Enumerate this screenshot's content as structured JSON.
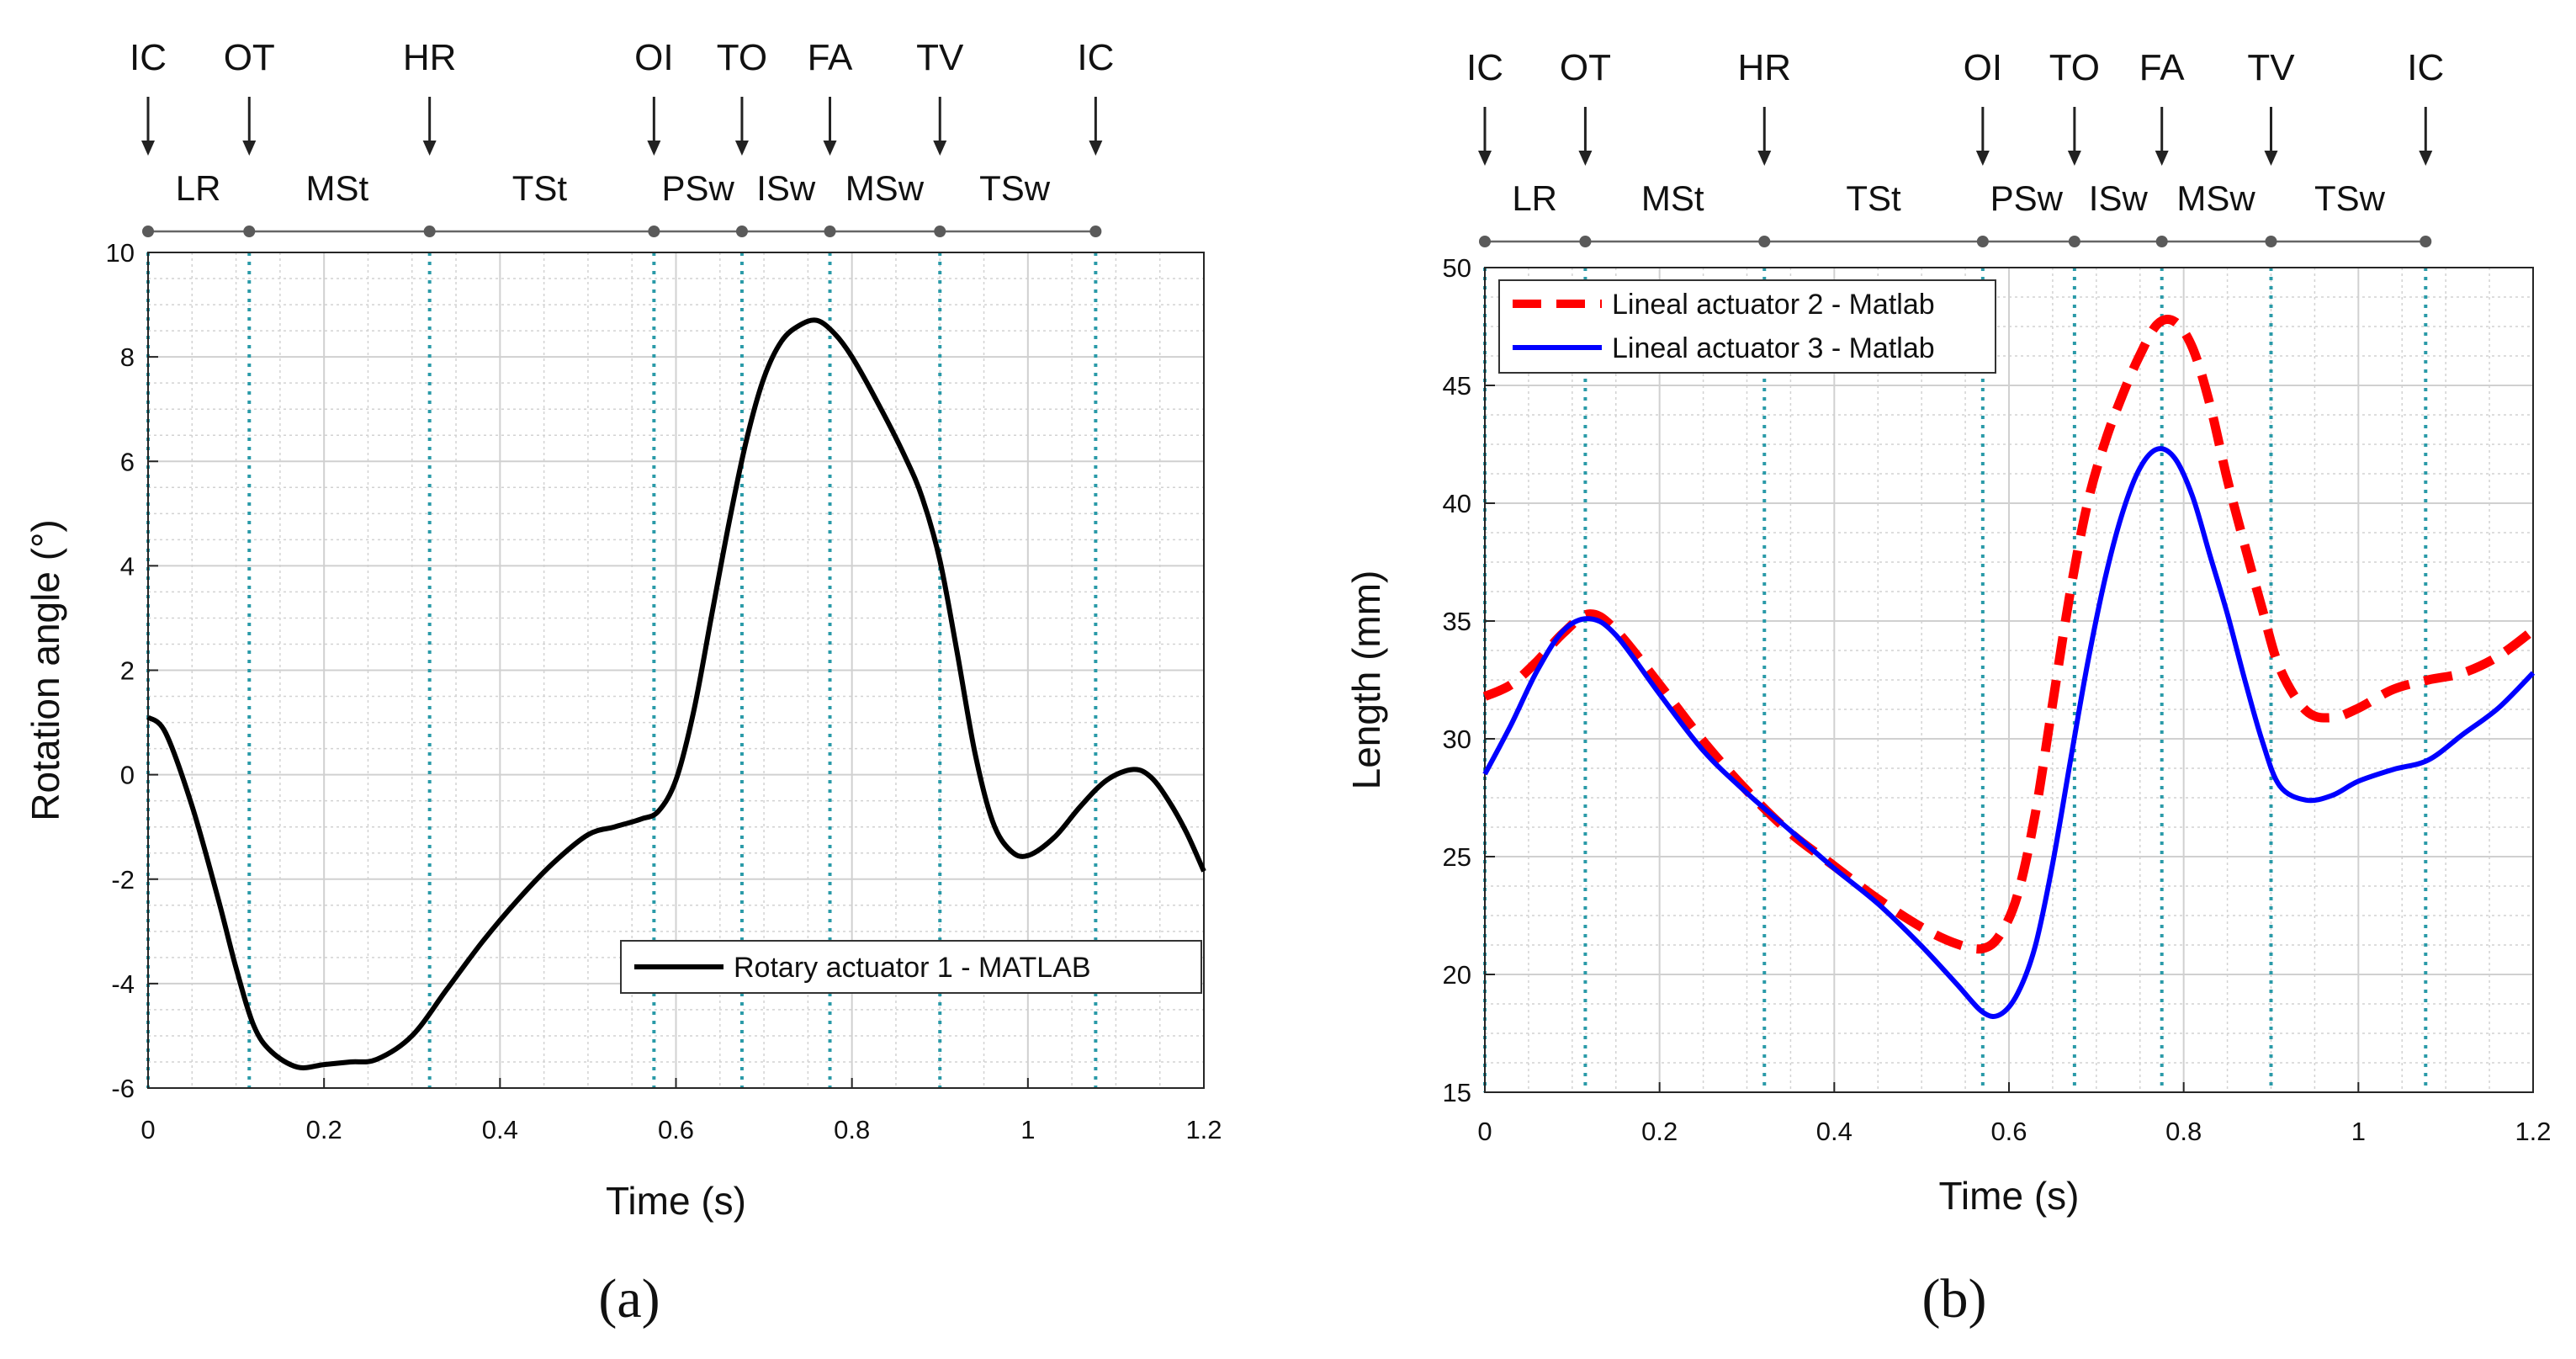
{
  "chart_data": [
    {
      "type": "line",
      "caption": "(a)",
      "xlabel": "Time (s)",
      "ylabel": "Rotation angle (°)",
      "xlim": [
        0,
        1.2
      ],
      "ylim": [
        -6,
        10
      ],
      "xticks": [
        0,
        0.2,
        0.4,
        0.6,
        0.8,
        1,
        1.2
      ],
      "xtick_labels": [
        "0",
        "0.2",
        "0.4",
        "0.6",
        "0.8",
        "1",
        "1.2"
      ],
      "yticks": [
        -6,
        -4,
        -2,
        0,
        2,
        4,
        6,
        8,
        10
      ],
      "ytick_labels": [
        "-6",
        "-4",
        "-2",
        "0",
        "2",
        "4",
        "6",
        "8",
        "10"
      ],
      "grid": true,
      "legend_position": "bottom-right",
      "events": [
        {
          "label": "IC",
          "t": 0
        },
        {
          "label": "OT",
          "t": 0.115
        },
        {
          "label": "HR",
          "t": 0.32
        },
        {
          "label": "OI",
          "t": 0.575
        },
        {
          "label": "TO",
          "t": 0.675
        },
        {
          "label": "FA",
          "t": 0.775
        },
        {
          "label": "TV",
          "t": 0.9
        },
        {
          "label": "IC",
          "t": 1.077
        }
      ],
      "phases": [
        {
          "label": "LR",
          "t": 0.057
        },
        {
          "label": "MSt",
          "t": 0.215
        },
        {
          "label": "TSt",
          "t": 0.445
        },
        {
          "label": "PSw",
          "t": 0.625
        },
        {
          "label": "ISw",
          "t": 0.725
        },
        {
          "label": "MSw",
          "t": 0.837
        },
        {
          "label": "TSw",
          "t": 0.985
        }
      ],
      "series": [
        {
          "name": "Rotary actuator 1 - MATLAB",
          "color": "#000000",
          "style": "solid",
          "x": [
            0,
            0.02,
            0.05,
            0.08,
            0.1,
            0.12,
            0.14,
            0.17,
            0.2,
            0.23,
            0.26,
            0.3,
            0.34,
            0.38,
            0.42,
            0.46,
            0.5,
            0.53,
            0.56,
            0.58,
            0.6,
            0.62,
            0.64,
            0.66,
            0.68,
            0.7,
            0.72,
            0.74,
            0.76,
            0.78,
            0.8,
            0.83,
            0.86,
            0.88,
            0.9,
            0.92,
            0.94,
            0.96,
            0.98,
            1.0,
            1.03,
            1.06,
            1.09,
            1.12,
            1.14,
            1.16,
            1.18,
            1.2
          ],
          "values": [
            1.1,
            0.8,
            -0.6,
            -2.4,
            -3.7,
            -4.8,
            -5.3,
            -5.6,
            -5.55,
            -5.5,
            -5.45,
            -5.0,
            -4.1,
            -3.2,
            -2.4,
            -1.7,
            -1.15,
            -1.0,
            -0.85,
            -0.7,
            -0.1,
            1.2,
            3.0,
            4.8,
            6.4,
            7.6,
            8.3,
            8.6,
            8.7,
            8.45,
            8.0,
            7.1,
            6.1,
            5.3,
            4.1,
            2.3,
            0.4,
            -0.9,
            -1.45,
            -1.55,
            -1.2,
            -0.6,
            -0.1,
            0.1,
            -0.05,
            -0.5,
            -1.1,
            -1.85
          ]
        }
      ]
    },
    {
      "type": "line",
      "caption": "(b)",
      "xlabel": "Time (s)",
      "ylabel": "Length (mm)",
      "xlim": [
        0,
        1.2
      ],
      "ylim": [
        15,
        50
      ],
      "xticks": [
        0,
        0.2,
        0.4,
        0.6,
        0.8,
        1,
        1.2
      ],
      "xtick_labels": [
        "0",
        "0.2",
        "0.4",
        "0.6",
        "0.8",
        "1",
        "1.2"
      ],
      "yticks": [
        15,
        20,
        25,
        30,
        35,
        40,
        45,
        50
      ],
      "ytick_labels": [
        "15",
        "20",
        "25",
        "30",
        "35",
        "40",
        "45",
        "50"
      ],
      "grid": true,
      "legend_position": "top-left",
      "events": [
        {
          "label": "IC",
          "t": 0
        },
        {
          "label": "OT",
          "t": 0.115
        },
        {
          "label": "HR",
          "t": 0.32
        },
        {
          "label": "OI",
          "t": 0.57
        },
        {
          "label": "TO",
          "t": 0.675
        },
        {
          "label": "FA",
          "t": 0.775
        },
        {
          "label": "TV",
          "t": 0.9
        },
        {
          "label": "IC",
          "t": 1.077
        }
      ],
      "phases": [
        {
          "label": "LR",
          "t": 0.057
        },
        {
          "label": "MSt",
          "t": 0.215
        },
        {
          "label": "TSt",
          "t": 0.445
        },
        {
          "label": "PSw",
          "t": 0.62
        },
        {
          "label": "ISw",
          "t": 0.725
        },
        {
          "label": "MSw",
          "t": 0.837
        },
        {
          "label": "TSw",
          "t": 0.99
        }
      ],
      "series": [
        {
          "name": "Lineal actuator 2 - Matlab",
          "color": "#ff0000",
          "style": "dashed",
          "x": [
            0,
            0.03,
            0.06,
            0.09,
            0.12,
            0.15,
            0.2,
            0.25,
            0.3,
            0.35,
            0.4,
            0.45,
            0.5,
            0.54,
            0.57,
            0.59,
            0.61,
            0.63,
            0.65,
            0.67,
            0.69,
            0.71,
            0.73,
            0.75,
            0.77,
            0.79,
            0.81,
            0.83,
            0.85,
            0.87,
            0.89,
            0.91,
            0.94,
            0.97,
            1.0,
            1.04,
            1.08,
            1.12,
            1.16,
            1.2
          ],
          "values": [
            31.8,
            32.3,
            33.3,
            34.5,
            35.3,
            34.6,
            32.3,
            29.9,
            27.8,
            26.0,
            24.6,
            23.2,
            22.0,
            21.3,
            21.1,
            21.7,
            23.4,
            26.8,
            31.5,
            36.2,
            40.0,
            42.6,
            44.6,
            46.3,
            47.6,
            47.7,
            46.6,
            44.2,
            41.0,
            38.2,
            35.5,
            33.0,
            31.2,
            30.9,
            31.3,
            32.1,
            32.5,
            32.8,
            33.5,
            34.6
          ]
        },
        {
          "name": "Lineal actuator 3 - Matlab",
          "color": "#0000ff",
          "style": "solid",
          "x": [
            0,
            0.03,
            0.06,
            0.09,
            0.12,
            0.15,
            0.2,
            0.25,
            0.3,
            0.35,
            0.4,
            0.45,
            0.5,
            0.54,
            0.57,
            0.59,
            0.61,
            0.63,
            0.65,
            0.67,
            0.69,
            0.71,
            0.73,
            0.75,
            0.77,
            0.79,
            0.81,
            0.83,
            0.85,
            0.87,
            0.89,
            0.91,
            0.94,
            0.97,
            1.0,
            1.04,
            1.08,
            1.12,
            1.16,
            1.2
          ],
          "values": [
            28.5,
            30.6,
            32.9,
            34.6,
            35.1,
            34.4,
            31.9,
            29.5,
            27.7,
            26.1,
            24.5,
            23.0,
            21.2,
            19.6,
            18.4,
            18.3,
            19.2,
            21.2,
            24.7,
            29.0,
            33.2,
            36.8,
            39.6,
            41.5,
            42.3,
            41.9,
            40.3,
            37.8,
            35.3,
            32.5,
            29.9,
            28.0,
            27.4,
            27.6,
            28.2,
            28.7,
            29.1,
            30.2,
            31.3,
            32.8
          ]
        }
      ]
    }
  ]
}
